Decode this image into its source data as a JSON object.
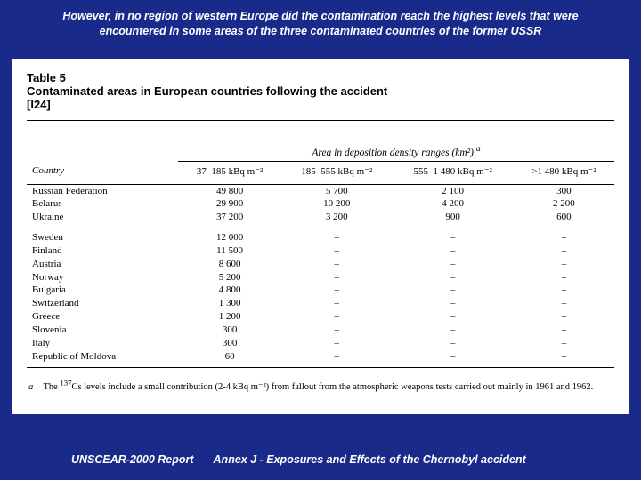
{
  "header": "However, in no region of western Europe did the contamination reach the highest levels that were encountered in some areas of the three contaminated countries of the former USSR",
  "table": {
    "label": "Table 5",
    "title": "Contaminated areas in European countries following the accident",
    "ref": "[I24]",
    "area_header_html": "Area in deposition density ranges (km²) <sup>a</sup>",
    "country_header": "Country",
    "range_headers": [
      "37–185 kBq m⁻²",
      "185–555 kBq m⁻²",
      "555–1 480 kBq m⁻²",
      ">1 480 kBq m⁻²"
    ],
    "groups": [
      {
        "rows": [
          {
            "country": "Russian Federation",
            "values": [
              "49 800",
              "5 700",
              "2 100",
              "300"
            ]
          },
          {
            "country": "Belarus",
            "values": [
              "29 900",
              "10 200",
              "4 200",
              "2 200"
            ]
          },
          {
            "country": "Ukraine",
            "values": [
              "37 200",
              "3 200",
              "900",
              "600"
            ]
          }
        ]
      },
      {
        "rows": [
          {
            "country": "Sweden",
            "values": [
              "12 000",
              "–",
              "–",
              "–"
            ]
          },
          {
            "country": "Finland",
            "values": [
              "11 500",
              "–",
              "–",
              "–"
            ]
          },
          {
            "country": "Austria",
            "values": [
              "8 600",
              "–",
              "–",
              "–"
            ]
          },
          {
            "country": "Norway",
            "values": [
              "5 200",
              "–",
              "–",
              "–"
            ]
          },
          {
            "country": "Bulgaria",
            "values": [
              "4 800",
              "–",
              "–",
              "–"
            ]
          },
          {
            "country": "Switzerland",
            "values": [
              "1 300",
              "–",
              "–",
              "–"
            ]
          },
          {
            "country": "Greece",
            "values": [
              "1 200",
              "–",
              "–",
              "–"
            ]
          },
          {
            "country": "Slovenia",
            "values": [
              "300",
              "–",
              "–",
              "–"
            ]
          },
          {
            "country": "Italy",
            "values": [
              "300",
              "–",
              "–",
              "–"
            ]
          },
          {
            "country": "Republic of Moldova",
            "values": [
              "60",
              "–",
              "–",
              "–"
            ]
          }
        ]
      }
    ],
    "footnote_letter": "a",
    "footnote_html": "The <sup>137</sup>Cs levels include a small contribution (2-4 kBq m⁻²) from fallout from the atmospheric weapons tests carried out mainly in 1961 and 1962."
  },
  "footer": {
    "left": "UNSCEAR-2000 Report",
    "right": "Annex J - Exposures and Effects of the Chernobyl accident"
  }
}
